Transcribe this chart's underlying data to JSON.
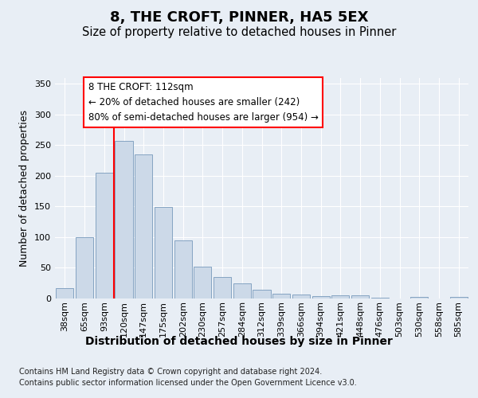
{
  "title": "8, THE CROFT, PINNER, HA5 5EX",
  "subtitle": "Size of property relative to detached houses in Pinner",
  "xlabel": "Distribution of detached houses by size in Pinner",
  "ylabel": "Number of detached properties",
  "bar_labels": [
    "38sqm",
    "65sqm",
    "93sqm",
    "120sqm",
    "147sqm",
    "175sqm",
    "202sqm",
    "230sqm",
    "257sqm",
    "284sqm",
    "312sqm",
    "339sqm",
    "366sqm",
    "394sqm",
    "421sqm",
    "448sqm",
    "476sqm",
    "503sqm",
    "530sqm",
    "558sqm",
    "585sqm"
  ],
  "bar_values": [
    17,
    100,
    205,
    257,
    235,
    149,
    95,
    52,
    35,
    25,
    14,
    8,
    6,
    4,
    5,
    5,
    1,
    0,
    2,
    0,
    2
  ],
  "bar_color": "#ccd9e8",
  "bar_edge_color": "#7799bb",
  "vline_color": "red",
  "annotation_text": "8 THE CROFT: 112sqm\n← 20% of detached houses are smaller (242)\n80% of semi-detached houses are larger (954) →",
  "annotation_box_color": "white",
  "annotation_box_edge": "red",
  "background_color": "#e8eef5",
  "plot_bg_color": "#e8eef5",
  "grid_color": "white",
  "footer_line1": "Contains HM Land Registry data © Crown copyright and database right 2024.",
  "footer_line2": "Contains public sector information licensed under the Open Government Licence v3.0.",
  "ylim": [
    0,
    360
  ],
  "title_fontsize": 13,
  "subtitle_fontsize": 10.5,
  "ylabel_fontsize": 9,
  "xlabel_fontsize": 10,
  "tick_fontsize": 8,
  "annotation_fontsize": 8.5,
  "footer_fontsize": 7
}
